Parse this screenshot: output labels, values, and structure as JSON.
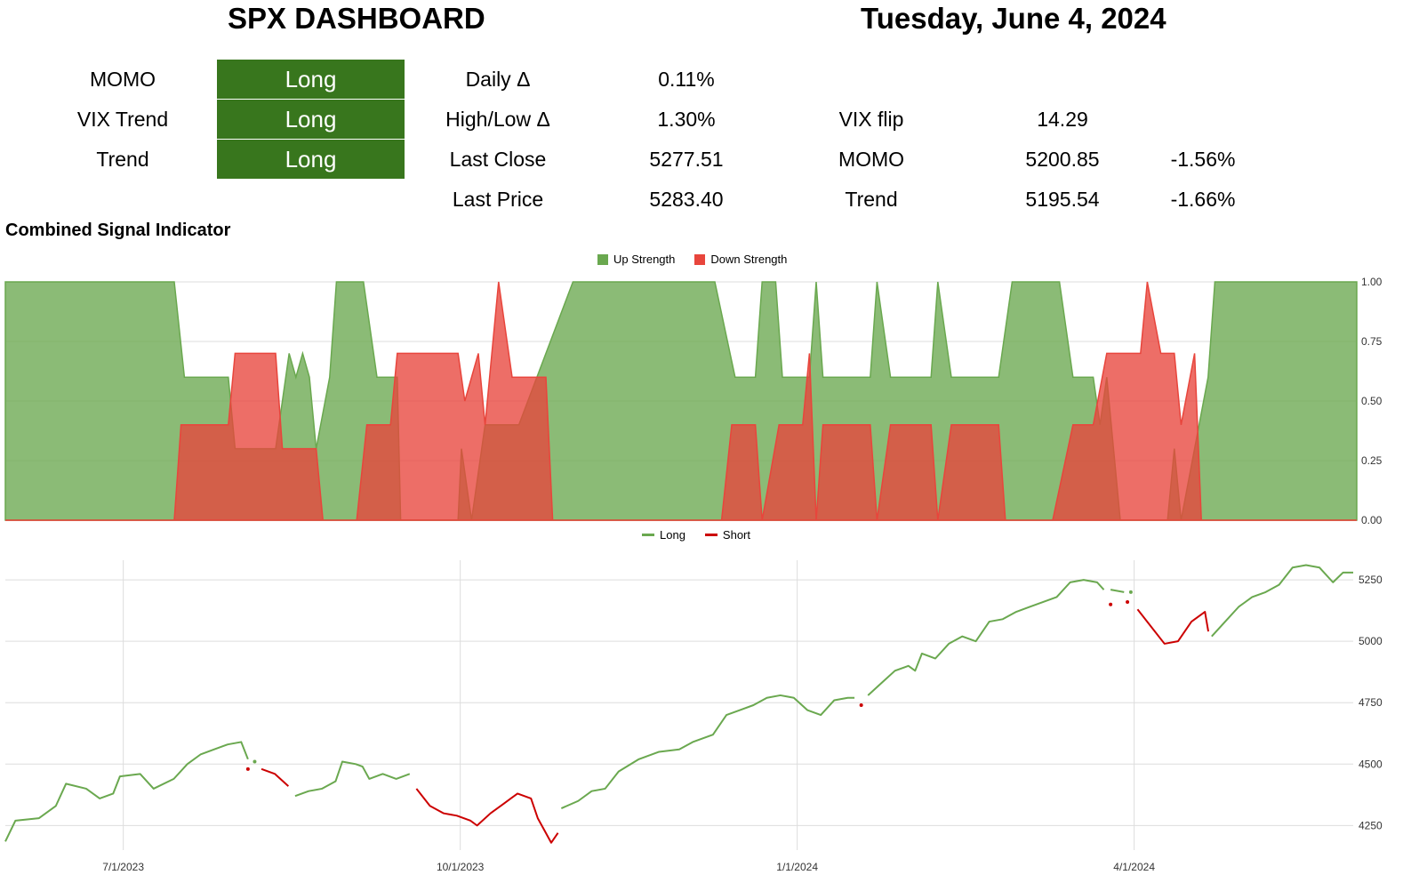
{
  "header": {
    "title": "SPX DASHBOARD",
    "date": "Tuesday, June 4, 2024"
  },
  "signals": [
    {
      "label": "MOMO",
      "value": "Long"
    },
    {
      "label": "VIX Trend",
      "value": "Long"
    },
    {
      "label": "Trend",
      "value": "Long"
    }
  ],
  "stats": {
    "daily_delta_label": "Daily Δ",
    "daily_delta_value": "0.11%",
    "highlow_delta_label": "High/Low Δ",
    "highlow_delta_value": "1.30%",
    "last_close_label": "Last Close",
    "last_close_value": "5277.51",
    "last_price_label": "Last Price",
    "last_price_value": "5283.40",
    "vix_flip_label": "VIX flip",
    "vix_flip_value": "14.29",
    "momo_label": "MOMO",
    "momo_value": "5200.85",
    "momo_pct": "-1.56%",
    "trend_label": "Trend",
    "trend_value": "5195.54",
    "trend_pct": "-1.66%"
  },
  "section_title": "Combined Signal Indicator",
  "colors": {
    "signal_bg": "#38761d",
    "up": "#6aa84f",
    "down": "#e8453c",
    "short_line": "#cc0000"
  },
  "chart_data": [
    {
      "type": "area",
      "series": [
        {
          "name": "Up Strength",
          "color": "#6aa84f",
          "values": [
            [
              0,
              1
            ],
            [
              0.5,
              1
            ],
            [
              0.53,
              0.6
            ],
            [
              0.62,
              0.6
            ],
            [
              0.66,
              0.6
            ],
            [
              0.68,
              0.3
            ],
            [
              0.8,
              0.3
            ],
            [
              0.84,
              0.7
            ],
            [
              0.86,
              0.6
            ],
            [
              0.88,
              0.7
            ],
            [
              0.9,
              0.6
            ],
            [
              0.92,
              0.3
            ],
            [
              0.96,
              0.6
            ],
            [
              0.98,
              1
            ],
            [
              1.06,
              1
            ],
            [
              1.1,
              0.6
            ],
            [
              1.16,
              0.6
            ],
            [
              1.17,
              0
            ],
            [
              1.34,
              0
            ],
            [
              1.35,
              0.3
            ],
            [
              1.38,
              0
            ],
            [
              1.42,
              0.4
            ],
            [
              1.52,
              0.4
            ],
            [
              1.6,
              0.7
            ],
            [
              1.68,
              1
            ],
            [
              2.1,
              1
            ],
            [
              2.16,
              0.6
            ],
            [
              2.22,
              0.6
            ],
            [
              2.24,
              1
            ],
            [
              2.28,
              1
            ],
            [
              2.3,
              0.6
            ],
            [
              2.38,
              0.6
            ],
            [
              2.4,
              1
            ],
            [
              2.42,
              0.6
            ],
            [
              2.56,
              0.6
            ],
            [
              2.58,
              1
            ],
            [
              2.62,
              0.6
            ],
            [
              2.74,
              0.6
            ],
            [
              2.76,
              1
            ],
            [
              2.8,
              0.6
            ],
            [
              2.94,
              0.6
            ],
            [
              2.98,
              1
            ],
            [
              3.12,
              1
            ],
            [
              3.16,
              0.6
            ],
            [
              3.22,
              0.6
            ],
            [
              3.24,
              0.4
            ],
            [
              3.26,
              0.6
            ],
            [
              3.3,
              0
            ],
            [
              3.44,
              0
            ],
            [
              3.46,
              0.3
            ],
            [
              3.48,
              0
            ],
            [
              3.56,
              0.6
            ],
            [
              3.58,
              1
            ],
            [
              4.0,
              1
            ]
          ]
        },
        {
          "name": "Down Strength",
          "color": "#e8453c",
          "values": [
            [
              0,
              0
            ],
            [
              0.5,
              0
            ],
            [
              0.52,
              0.4
            ],
            [
              0.66,
              0.4
            ],
            [
              0.68,
              0.7
            ],
            [
              0.8,
              0.7
            ],
            [
              0.82,
              0.3
            ],
            [
              0.92,
              0.3
            ],
            [
              0.94,
              0
            ],
            [
              1.04,
              0
            ],
            [
              1.07,
              0.4
            ],
            [
              1.14,
              0.4
            ],
            [
              1.16,
              0.7
            ],
            [
              1.34,
              0.7
            ],
            [
              1.36,
              0.5
            ],
            [
              1.4,
              0.7
            ],
            [
              1.42,
              0.4
            ],
            [
              1.46,
              1
            ],
            [
              1.5,
              0.6
            ],
            [
              1.6,
              0.6
            ],
            [
              1.62,
              0
            ],
            [
              2.12,
              0
            ],
            [
              2.15,
              0.4
            ],
            [
              2.22,
              0.4
            ],
            [
              2.24,
              0
            ],
            [
              2.29,
              0.4
            ],
            [
              2.36,
              0.4
            ],
            [
              2.38,
              0.7
            ],
            [
              2.4,
              0
            ],
            [
              2.42,
              0.4
            ],
            [
              2.56,
              0.4
            ],
            [
              2.58,
              0
            ],
            [
              2.62,
              0.4
            ],
            [
              2.74,
              0.4
            ],
            [
              2.76,
              0
            ],
            [
              2.8,
              0.4
            ],
            [
              2.94,
              0.4
            ],
            [
              2.96,
              0
            ],
            [
              3.1,
              0
            ],
            [
              3.16,
              0.4
            ],
            [
              3.22,
              0.4
            ],
            [
              3.26,
              0.7
            ],
            [
              3.3,
              0.7
            ],
            [
              3.36,
              0.7
            ],
            [
              3.38,
              1
            ],
            [
              3.42,
              0.7
            ],
            [
              3.46,
              0.7
            ],
            [
              3.48,
              0.4
            ],
            [
              3.52,
              0.7
            ],
            [
              3.54,
              0
            ],
            [
              4.0,
              0
            ]
          ]
        }
      ],
      "ylim": [
        0,
        1
      ],
      "y_ticks": [
        "0.00",
        "0.25",
        "0.50",
        "0.75",
        "1.00"
      ],
      "legend": "top-center"
    },
    {
      "type": "line",
      "x_ticks": [
        "7/1/2023",
        "10/1/2023",
        "1/1/2024",
        "4/1/2024"
      ],
      "y_ticks": [
        "4250",
        "4500",
        "4750",
        "5000",
        "5250"
      ],
      "ylim": [
        4150,
        5330
      ],
      "legend": "top-center",
      "series": [
        {
          "name": "Long",
          "color": "#6aa84f",
          "segments": [
            [
              [
                0.0,
                4185
              ],
              [
                0.03,
                4270
              ],
              [
                0.1,
                4280
              ],
              [
                0.15,
                4330
              ],
              [
                0.18,
                4420
              ],
              [
                0.24,
                4400
              ],
              [
                0.28,
                4360
              ],
              [
                0.32,
                4380
              ],
              [
                0.34,
                4450
              ],
              [
                0.4,
                4460
              ],
              [
                0.44,
                4400
              ],
              [
                0.5,
                4440
              ],
              [
                0.54,
                4500
              ],
              [
                0.58,
                4540
              ],
              [
                0.62,
                4560
              ],
              [
                0.66,
                4580
              ],
              [
                0.7,
                4590
              ],
              [
                0.72,
                4520
              ]
            ],
            [
              [
                0.74,
                4510
              ]
            ],
            [
              [
                0.86,
                4370
              ],
              [
                0.9,
                4390
              ],
              [
                0.94,
                4400
              ],
              [
                0.98,
                4430
              ],
              [
                1.0,
                4510
              ],
              [
                1.04,
                4500
              ],
              [
                1.06,
                4490
              ],
              [
                1.08,
                4440
              ],
              [
                1.12,
                4460
              ],
              [
                1.16,
                4440
              ],
              [
                1.2,
                4460
              ]
            ],
            [
              [
                1.65,
                4320
              ],
              [
                1.7,
                4350
              ],
              [
                1.74,
                4390
              ],
              [
                1.78,
                4400
              ],
              [
                1.82,
                4470
              ],
              [
                1.88,
                4520
              ],
              [
                1.94,
                4550
              ],
              [
                2.0,
                4560
              ],
              [
                2.04,
                4590
              ],
              [
                2.1,
                4620
              ],
              [
                2.14,
                4700
              ],
              [
                2.18,
                4720
              ],
              [
                2.22,
                4740
              ],
              [
                2.26,
                4770
              ],
              [
                2.3,
                4780
              ],
              [
                2.34,
                4770
              ],
              [
                2.38,
                4720
              ],
              [
                2.42,
                4700
              ],
              [
                2.46,
                4760
              ],
              [
                2.5,
                4770
              ],
              [
                2.52,
                4770
              ]
            ],
            [
              [
                2.56,
                4780
              ],
              [
                2.6,
                4830
              ],
              [
                2.64,
                4880
              ],
              [
                2.68,
                4900
              ],
              [
                2.7,
                4880
              ],
              [
                2.72,
                4950
              ],
              [
                2.76,
                4930
              ],
              [
                2.8,
                4990
              ],
              [
                2.84,
                5020
              ],
              [
                2.88,
                5000
              ],
              [
                2.92,
                5080
              ],
              [
                2.96,
                5090
              ],
              [
                3.0,
                5120
              ],
              [
                3.04,
                5140
              ],
              [
                3.08,
                5160
              ],
              [
                3.12,
                5180
              ],
              [
                3.16,
                5240
              ],
              [
                3.2,
                5250
              ],
              [
                3.24,
                5240
              ],
              [
                3.26,
                5210
              ]
            ],
            [
              [
                3.28,
                5210
              ],
              [
                3.32,
                5200
              ]
            ],
            [
              [
                3.34,
                5200
              ]
            ],
            [
              [
                3.58,
                5020
              ],
              [
                3.62,
                5080
              ],
              [
                3.66,
                5140
              ],
              [
                3.7,
                5180
              ],
              [
                3.74,
                5200
              ],
              [
                3.78,
                5230
              ],
              [
                3.82,
                5300
              ],
              [
                3.86,
                5310
              ],
              [
                3.9,
                5300
              ],
              [
                3.94,
                5240
              ],
              [
                3.97,
                5280
              ],
              [
                4.0,
                5280
              ]
            ]
          ]
        },
        {
          "name": "Short",
          "color": "#cc0000",
          "segments": [
            [
              [
                0.72,
                4480
              ]
            ],
            [
              [
                0.76,
                4480
              ],
              [
                0.8,
                4460
              ],
              [
                0.84,
                4410
              ]
            ],
            [
              [
                1.22,
                4400
              ],
              [
                1.26,
                4330
              ],
              [
                1.3,
                4300
              ],
              [
                1.34,
                4290
              ],
              [
                1.38,
                4270
              ],
              [
                1.4,
                4250
              ],
              [
                1.44,
                4300
              ],
              [
                1.48,
                4340
              ],
              [
                1.5,
                4360
              ],
              [
                1.52,
                4380
              ],
              [
                1.56,
                4360
              ],
              [
                1.58,
                4280
              ],
              [
                1.6,
                4230
              ],
              [
                1.62,
                4180
              ],
              [
                1.64,
                4220
              ]
            ],
            [
              [
                2.54,
                4740
              ]
            ],
            [
              [
                3.28,
                5150
              ]
            ],
            [
              [
                3.33,
                5160
              ]
            ],
            [
              [
                3.36,
                5130
              ],
              [
                3.4,
                5060
              ],
              [
                3.44,
                4990
              ],
              [
                3.48,
                5000
              ],
              [
                3.52,
                5080
              ],
              [
                3.56,
                5120
              ],
              [
                3.57,
                5040
              ]
            ]
          ]
        }
      ]
    }
  ]
}
